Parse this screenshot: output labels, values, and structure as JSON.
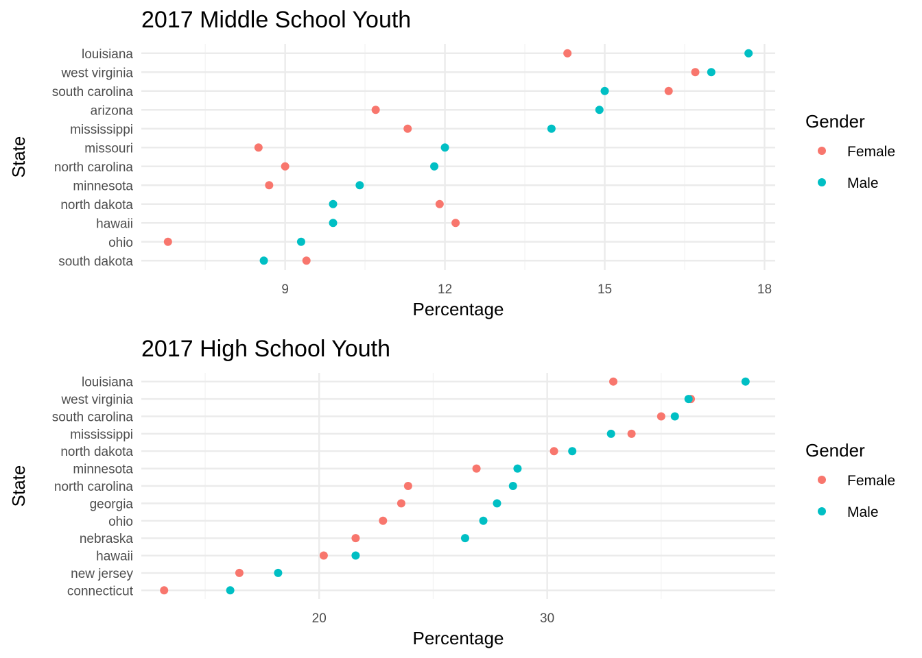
{
  "colors": {
    "female": "#F8766D",
    "male": "#00BFC4"
  },
  "chart_data": [
    {
      "type": "scatter",
      "title": "2017 Middle School Youth",
      "xlabel": "Percentage",
      "ylabel": "State",
      "xlim": [
        6.3,
        18.2
      ],
      "xticks": [
        9,
        12,
        15,
        18
      ],
      "grid": true,
      "legend": {
        "title": "Gender",
        "position": "right",
        "entries": [
          "Female",
          "Male"
        ]
      },
      "categories": [
        "louisiana",
        "west virginia",
        "south carolina",
        "arizona",
        "mississippi",
        "missouri",
        "north carolina",
        "minnesota",
        "north dakota",
        "hawaii",
        "ohio",
        "south dakota"
      ],
      "series": [
        {
          "name": "Female",
          "values": [
            14.3,
            16.7,
            16.2,
            10.7,
            11.3,
            8.5,
            9.0,
            8.7,
            11.9,
            12.2,
            6.8,
            9.4
          ]
        },
        {
          "name": "Male",
          "values": [
            17.7,
            17.0,
            15.0,
            14.9,
            14.0,
            12.0,
            11.8,
            10.4,
            9.9,
            9.9,
            9.3,
            8.6
          ]
        }
      ]
    },
    {
      "type": "scatter",
      "title": "2017 High School Youth",
      "xlabel": "Percentage",
      "ylabel": "State",
      "xlim": [
        12.2,
        40.0
      ],
      "xticks": [
        20,
        30
      ],
      "grid": true,
      "legend": {
        "title": "Gender",
        "position": "right",
        "entries": [
          "Female",
          "Male"
        ]
      },
      "categories": [
        "louisiana",
        "west virginia",
        "south carolina",
        "mississippi",
        "north dakota",
        "minnesota",
        "north carolina",
        "georgia",
        "ohio",
        "nebraska",
        "hawaii",
        "new jersey",
        "connecticut"
      ],
      "series": [
        {
          "name": "Female",
          "values": [
            32.9,
            36.3,
            35.0,
            33.7,
            30.3,
            26.9,
            23.9,
            23.6,
            22.8,
            21.6,
            20.2,
            16.5,
            13.2
          ]
        },
        {
          "name": "Male",
          "values": [
            38.7,
            36.2,
            35.6,
            32.8,
            31.1,
            28.7,
            28.5,
            27.8,
            27.2,
            26.4,
            21.6,
            18.2,
            16.1
          ]
        }
      ]
    }
  ]
}
